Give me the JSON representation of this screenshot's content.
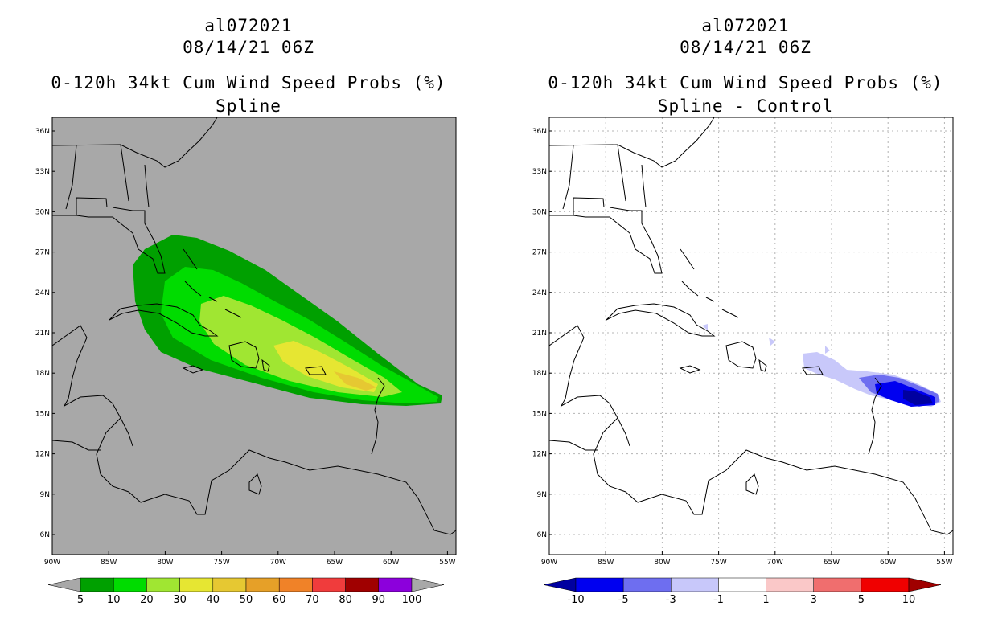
{
  "left": {
    "storm_id": "al072021",
    "datetime": "08/14/21 06Z",
    "product": "0-120h 34kt Cum Wind Speed Probs (%)",
    "subtitle": "Spline",
    "background": "#a8a8a8",
    "colorbar": {
      "labels": [
        "5",
        "10",
        "20",
        "30",
        "40",
        "50",
        "60",
        "70",
        "80",
        "90",
        "100"
      ],
      "colors": [
        "#a8a8a8",
        "#00a000",
        "#00dc00",
        "#a0e632",
        "#e6e632",
        "#e6c832",
        "#e6a028",
        "#f08228",
        "#f03c3c",
        "#a00000",
        "#8c00dc",
        "#a8a8a8"
      ]
    }
  },
  "right": {
    "storm_id": "al072021",
    "datetime": "08/14/21 06Z",
    "product": "0-120h 34kt Cum Wind Speed Probs (%)",
    "subtitle": "Spline - Control",
    "background": "#ffffff",
    "colorbar": {
      "labels": [
        "-10",
        "-5",
        "-3",
        "-1",
        "1",
        "3",
        "5",
        "10"
      ],
      "colors": [
        "#0000a0",
        "#0000f0",
        "#6e6ef0",
        "#c8c8fa",
        "#ffffff",
        "#fac8c8",
        "#f06e6e",
        "#f00000",
        "#a00000"
      ]
    }
  },
  "axes": {
    "lat_labels": [
      "36N",
      "33N",
      "30N",
      "27N",
      "24N",
      "21N",
      "18N",
      "15N",
      "12N",
      "9N",
      "6N"
    ],
    "lon_labels": [
      "90W",
      "85W",
      "80W",
      "75W",
      "70W",
      "65W",
      "60W",
      "55W"
    ]
  }
}
